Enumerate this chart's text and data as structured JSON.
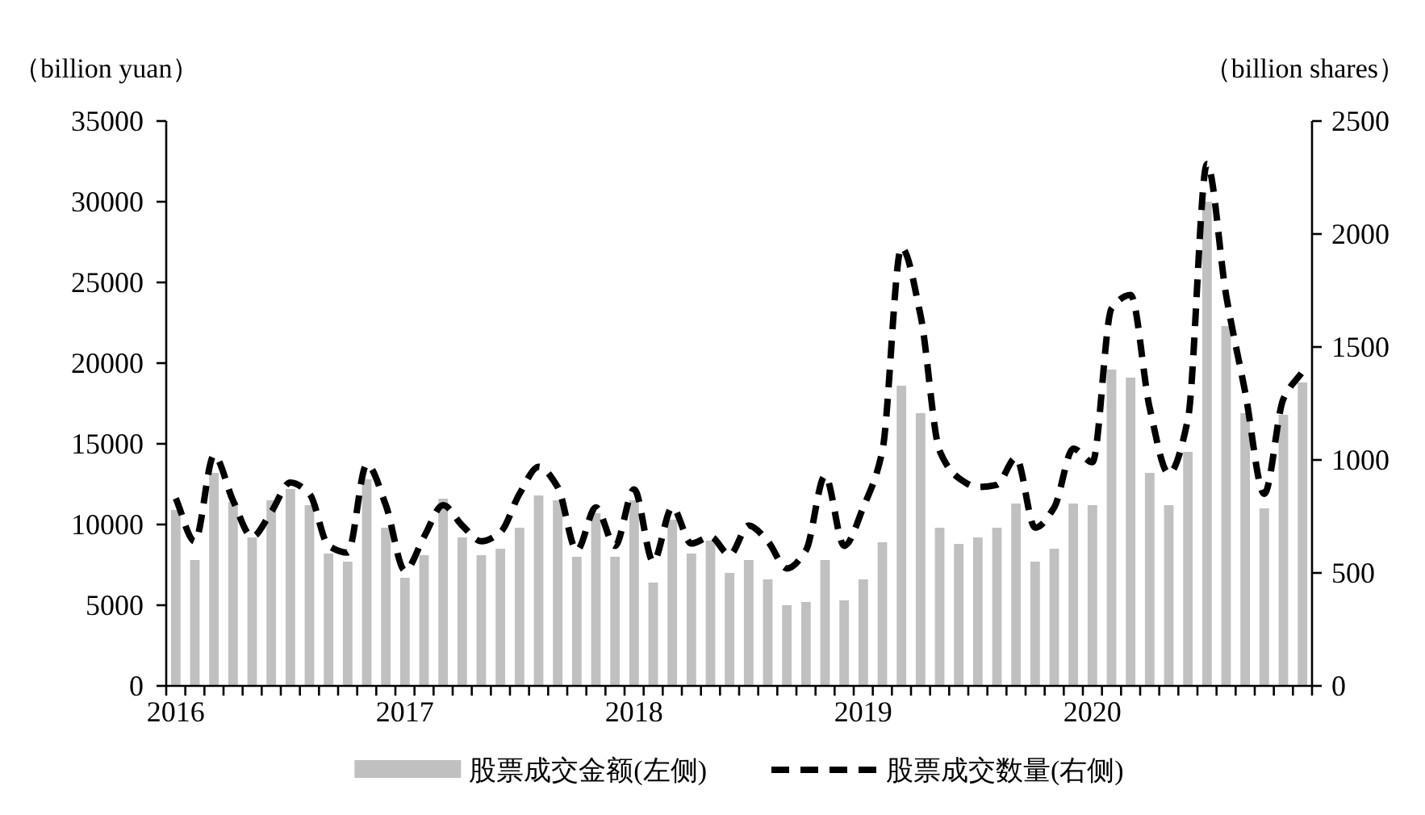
{
  "chart_data": {
    "type": "bar",
    "ylabel": "（billion yuan）",
    "y2label": "（billion shares）",
    "categories": [
      "2016",
      null,
      null,
      null,
      null,
      null,
      null,
      null,
      null,
      null,
      null,
      null,
      "2017",
      null,
      null,
      null,
      null,
      null,
      null,
      null,
      null,
      null,
      null,
      null,
      "2018",
      null,
      null,
      null,
      null,
      null,
      null,
      null,
      null,
      null,
      null,
      null,
      "2019",
      null,
      null,
      null,
      null,
      null,
      null,
      null,
      null,
      null,
      null,
      null,
      "2020",
      null,
      null,
      null,
      null,
      null,
      null,
      null,
      null,
      null,
      null,
      null
    ],
    "series": [
      {
        "name": "股票成交金额(左侧)",
        "color": "#c0c0c0",
        "values": [
          10900,
          7800,
          13200,
          11400,
          9200,
          11500,
          12200,
          11200,
          8200,
          7700,
          12800,
          9800,
          6700,
          8100,
          11600,
          9200,
          8100,
          8500,
          9800,
          11800,
          11500,
          8000,
          10700,
          8000,
          11500,
          6400,
          10300,
          8200,
          9000,
          7000,
          7800,
          6600,
          5000,
          5200,
          7800,
          5300,
          6600,
          8900,
          18600,
          16900,
          9800,
          8800,
          9200,
          9800,
          11300,
          7700,
          8500,
          11300,
          11200,
          19600,
          19100,
          13200,
          11200,
          14500,
          30000,
          22300,
          16900,
          11000,
          16800,
          18800
        ]
      },
      {
        "name": "股票成交数量(右侧)",
        "type": "line",
        "axis": "y2",
        "color": "#000000",
        "line_style": "dashed",
        "values": [
          830,
          640,
          1020,
          820,
          660,
          770,
          900,
          850,
          620,
          590,
          980,
          800,
          510,
          660,
          800,
          710,
          640,
          680,
          850,
          970,
          880,
          600,
          790,
          620,
          870,
          550,
          790,
          630,
          660,
          580,
          710,
          640,
          520,
          600,
          930,
          620,
          790,
          1040,
          1940,
          1640,
          1040,
          920,
          880,
          890,
          1010,
          700,
          790,
          1050,
          990,
          1670,
          1730,
          1230,
          940,
          1180,
          2310,
          1730,
          1300,
          850,
          1270,
          1390
        ]
      }
    ],
    "ylim": [
      0,
      35000
    ],
    "yticks": [
      0,
      5000,
      10000,
      15000,
      20000,
      25000,
      30000,
      35000
    ],
    "y2lim": [
      0,
      2500
    ],
    "y2ticks": [
      0,
      500,
      1000,
      1500,
      2000,
      2500
    ],
    "legend": "bottom",
    "grid": false
  }
}
